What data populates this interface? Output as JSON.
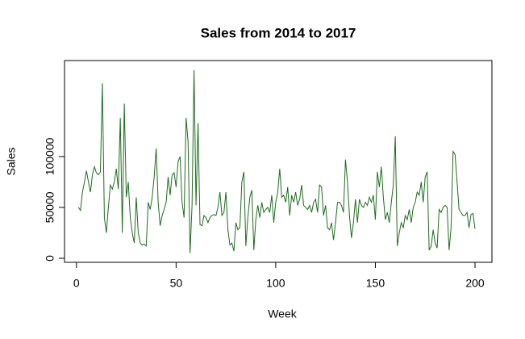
{
  "chart_data": {
    "type": "line",
    "title": "Sales from 2014 to 2017",
    "x_label": "Week",
    "y_label": "Sales",
    "x": [
      1,
      2,
      3,
      4,
      5,
      6,
      7,
      8,
      9,
      10,
      11,
      12,
      13,
      14,
      15,
      16,
      17,
      18,
      19,
      20,
      21,
      22,
      23,
      24,
      25,
      26,
      27,
      28,
      29,
      30,
      31,
      32,
      33,
      34,
      35,
      36,
      37,
      38,
      39,
      40,
      41,
      42,
      43,
      44,
      45,
      46,
      47,
      48,
      49,
      50,
      51,
      52,
      53,
      54,
      55,
      56,
      57,
      58,
      59,
      60,
      61,
      62,
      63,
      64,
      65,
      66,
      67,
      68,
      69,
      70,
      71,
      72,
      73,
      74,
      75,
      76,
      77,
      78,
      79,
      80,
      81,
      82,
      83,
      84,
      85,
      86,
      87,
      88,
      89,
      90,
      91,
      92,
      93,
      94,
      95,
      96,
      97,
      98,
      99,
      100,
      101,
      102,
      103,
      104,
      105,
      106,
      107,
      108,
      109,
      110,
      111,
      112,
      113,
      114,
      115,
      116,
      117,
      118,
      119,
      120,
      121,
      122,
      123,
      124,
      125,
      126,
      127,
      128,
      129,
      130,
      131,
      132,
      133,
      134,
      135,
      136,
      137,
      138,
      139,
      140,
      141,
      142,
      143,
      144,
      145,
      146,
      147,
      148,
      149,
      150,
      151,
      152,
      153,
      154,
      155,
      156,
      157,
      158,
      159,
      160,
      161,
      162,
      163,
      164,
      165,
      166,
      167,
      168,
      169,
      170,
      171,
      172,
      173,
      174,
      175,
      176,
      177,
      178,
      179,
      180,
      181,
      182,
      183,
      184,
      185,
      186,
      187,
      188,
      189,
      190,
      191,
      192,
      193,
      194,
      195,
      196,
      197,
      198,
      199,
      200
    ],
    "series": [
      {
        "name": "Sales",
        "color": "#1f6b1f",
        "values": [
          50000,
          47000,
          65000,
          75000,
          86000,
          75000,
          65000,
          82000,
          90000,
          84000,
          82000,
          85000,
          172000,
          40000,
          25000,
          50000,
          72000,
          68000,
          75000,
          88000,
          68000,
          138000,
          25000,
          152000,
          60000,
          75000,
          40000,
          25000,
          15000,
          60000,
          25000,
          15000,
          13000,
          14000,
          12000,
          55000,
          48000,
          60000,
          80000,
          108000,
          55000,
          32000,
          42000,
          48000,
          55000,
          80000,
          62000,
          82000,
          84000,
          70000,
          95000,
          100000,
          55000,
          40000,
          138000,
          115000,
          5000,
          52000,
          185000,
          52000,
          133000,
          33000,
          32000,
          42000,
          40000,
          35000,
          40000,
          42000,
          43000,
          42000,
          50000,
          65000,
          42000,
          45000,
          65000,
          28000,
          13000,
          15000,
          7000,
          35000,
          28000,
          30000,
          75000,
          85000,
          12000,
          40000,
          60000,
          67000,
          8000,
          38000,
          52000,
          40000,
          55000,
          45000,
          48000,
          50000,
          45000,
          62000,
          35000,
          55000,
          65000,
          88000,
          60000,
          62000,
          55000,
          70000,
          42000,
          62000,
          55000,
          65000,
          52000,
          58000,
          72000,
          52000,
          50000,
          48000,
          52000,
          45000,
          55000,
          58000,
          45000,
          72000,
          70000,
          42000,
          52000,
          30000,
          28000,
          35000,
          18000,
          35000,
          55000,
          55000,
          52000,
          45000,
          97000,
          75000,
          42000,
          20000,
          35000,
          58000,
          35000,
          58000,
          52000,
          50000,
          55000,
          52000,
          60000,
          55000,
          62000,
          38000,
          85000,
          70000,
          90000,
          60000,
          38000,
          45000,
          35000,
          55000,
          72000,
          120000,
          12000,
          25000,
          35000,
          30000,
          42000,
          38000,
          48000,
          35000,
          50000,
          55000,
          65000,
          62000,
          75000,
          55000,
          80000,
          85000,
          8000,
          12000,
          28000,
          15000,
          10000,
          48000,
          45000,
          50000,
          52000,
          50000,
          8000,
          30000,
          105000,
          102000,
          75000,
          48000,
          45000,
          42000,
          42000,
          45000,
          30000,
          43000,
          44000,
          29000
        ]
      }
    ],
    "xlim": [
      -6,
      208.5
    ],
    "ylim": [
      -4000,
      194400
    ],
    "xticks": [
      0,
      50,
      100,
      150,
      200
    ],
    "yticks": [
      0,
      50000,
      100000
    ]
  }
}
